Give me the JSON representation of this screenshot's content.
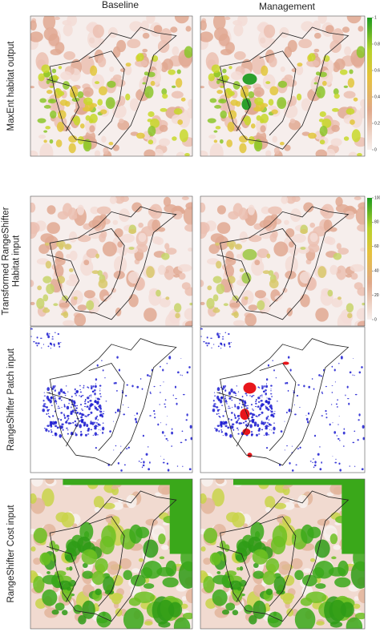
{
  "columns": [
    "Baseline",
    "Management"
  ],
  "rows": [
    {
      "label_lines": [
        "MaxEnt habitat output"
      ],
      "colorbar_ticks": [
        1,
        0.8,
        0.6,
        0.4,
        0.2,
        0
      ]
    },
    {
      "label_lines": [
        "Transformed RangeShifter",
        "Habitat input"
      ],
      "colorbar_ticks": [
        100,
        80,
        60,
        40,
        20,
        0
      ]
    },
    {
      "label_lines": [
        "RangeShifter Patch input"
      ]
    },
    {
      "label_lines": [
        "RangeShifter Cost input"
      ]
    }
  ]
}
